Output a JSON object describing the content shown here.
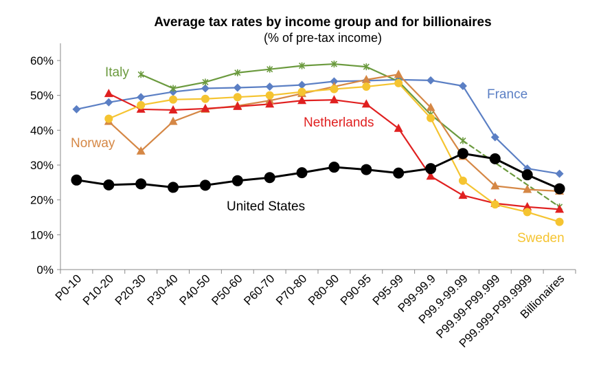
{
  "chart_data": {
    "type": "line",
    "title": "Average tax rates by income group and for billionaires",
    "subtitle": "(% of pre-tax income)",
    "categories": [
      "P0-10",
      "P10-20",
      "P20-30",
      "P30-40",
      "P40-50",
      "P50-60",
      "P60-70",
      "P70-80",
      "P80-90",
      "P90-95",
      "P95-99",
      "P99-99.9",
      "P99.9-99.99",
      "P99.99-P99.999",
      "P99.999-P99.9999",
      "Billionaires"
    ],
    "ylim": [
      0,
      60
    ],
    "yticks": [
      "0%",
      "10%",
      "20%",
      "30%",
      "40%",
      "50%",
      "60%"
    ],
    "grid": false,
    "series": [
      {
        "name": "France",
        "color": "#5b7fc4",
        "marker": "diamond",
        "values": [
          46,
          48,
          49.5,
          51,
          52,
          52.2,
          52.5,
          53,
          54,
          54.2,
          54.5,
          54.3,
          52.7,
          38,
          29,
          27.5
        ]
      },
      {
        "name": "Italy",
        "color": "#6b9a3e",
        "marker": "x",
        "dashed_last": 3,
        "values": [
          null,
          null,
          56,
          52,
          53.8,
          56.5,
          57.5,
          58.5,
          59,
          58.2,
          54,
          44.5,
          37,
          null,
          null,
          18
        ]
      },
      {
        "name": "Norway",
        "color": "#d58745",
        "marker": "triangle",
        "values": [
          null,
          42.5,
          34,
          42.5,
          46,
          47,
          48.5,
          50.5,
          52.5,
          54.5,
          56,
          46.5,
          32.5,
          24,
          23,
          22.5
        ]
      },
      {
        "name": "Netherlands",
        "color": "#e02020",
        "marker": "triangle",
        "values": [
          null,
          50.5,
          46,
          45.8,
          46.2,
          46.8,
          47.5,
          48.5,
          48.7,
          47.5,
          40.5,
          26.8,
          21.3,
          19,
          18,
          17.3
        ]
      },
      {
        "name": "Sweden",
        "color": "#f5c431",
        "marker": "circle",
        "values": [
          null,
          43.3,
          47.2,
          48.8,
          49,
          49.5,
          50,
          51,
          51.8,
          52.5,
          53.5,
          43.5,
          25.5,
          18.7,
          16.5,
          13.7
        ]
      },
      {
        "name": "United States",
        "color": "#000000",
        "marker": "bigcircle",
        "values": [
          25.7,
          24.3,
          24.6,
          23.6,
          24.2,
          25.5,
          26.4,
          27.8,
          29.4,
          28.7,
          27.7,
          29,
          33.3,
          31.8,
          27.2,
          23.2
        ]
      }
    ]
  }
}
